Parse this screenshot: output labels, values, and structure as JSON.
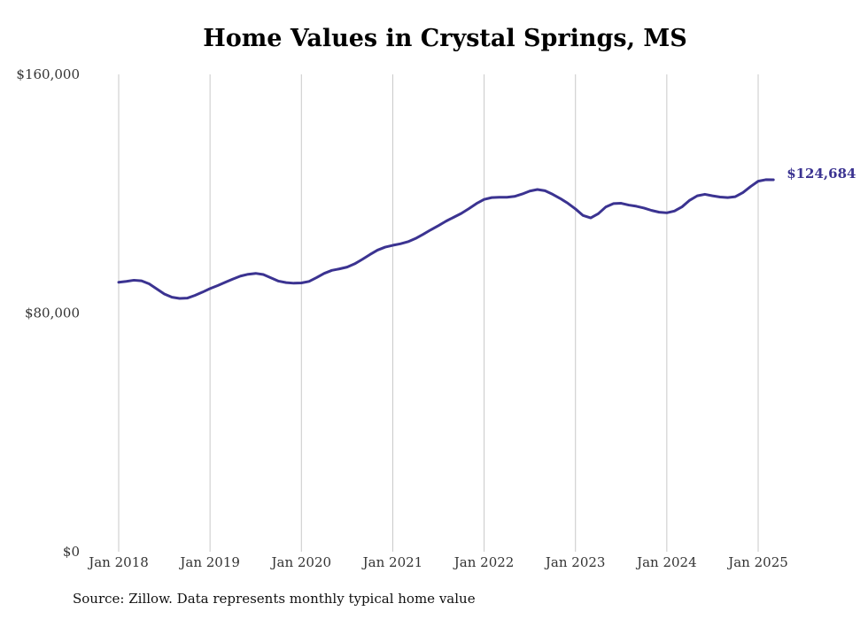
{
  "chart_data": {
    "type": "line",
    "title": "Home Values in Crystal Springs, MS",
    "source": "Source: Zillow. Data represents monthly typical home value",
    "xlabel": "",
    "ylabel": "",
    "ylim": [
      0,
      160000
    ],
    "y_ticks": [
      0,
      80000,
      160000
    ],
    "y_tick_labels": [
      "$0",
      "$80,000",
      "$160,000"
    ],
    "x_range": [
      "2018-01",
      "2025-03"
    ],
    "x_ticks": [
      "2018-01",
      "2019-01",
      "2020-01",
      "2021-01",
      "2022-01",
      "2023-01",
      "2024-01",
      "2025-01"
    ],
    "x_tick_labels": [
      "Jan 2018",
      "Jan 2019",
      "Jan 2020",
      "Jan 2021",
      "Jan 2022",
      "Jan 2023",
      "Jan 2024",
      "Jan 2025"
    ],
    "grid": "vertical",
    "end_label": "$124,684",
    "line_color": "#3b3391",
    "series": [
      {
        "x": [
          "2018-01",
          "2018-02",
          "2018-03",
          "2018-04",
          "2018-05",
          "2018-06",
          "2018-07",
          "2018-08",
          "2018-09",
          "2018-10",
          "2018-11",
          "2018-12",
          "2019-01",
          "2019-02",
          "2019-03",
          "2019-04",
          "2019-05",
          "2019-06",
          "2019-07",
          "2019-08",
          "2019-09",
          "2019-10",
          "2019-11",
          "2019-12",
          "2020-01",
          "2020-02",
          "2020-03",
          "2020-04",
          "2020-05",
          "2020-06",
          "2020-07",
          "2020-08",
          "2020-09",
          "2020-10",
          "2020-11",
          "2020-12",
          "2021-01",
          "2021-02",
          "2021-03",
          "2021-04",
          "2021-05",
          "2021-06",
          "2021-07",
          "2021-08",
          "2021-09",
          "2021-10",
          "2021-11",
          "2021-12",
          "2022-01",
          "2022-02",
          "2022-03",
          "2022-04",
          "2022-05",
          "2022-06",
          "2022-07",
          "2022-08",
          "2022-09",
          "2022-10",
          "2022-11",
          "2022-12",
          "2023-01",
          "2023-02",
          "2023-03",
          "2023-04",
          "2023-05",
          "2023-06",
          "2023-07",
          "2023-08",
          "2023-09",
          "2023-10",
          "2023-11",
          "2023-12",
          "2024-01",
          "2024-02",
          "2024-03",
          "2024-04",
          "2024-05",
          "2024-06",
          "2024-07",
          "2024-08",
          "2024-09",
          "2024-10",
          "2024-11",
          "2024-12",
          "2025-01",
          "2025-02",
          "2025-03"
        ],
        "values": [
          90300,
          90600,
          91000,
          90800,
          89800,
          88100,
          86400,
          85300,
          84900,
          85000,
          85900,
          87000,
          88200,
          89200,
          90300,
          91400,
          92400,
          93000,
          93300,
          92900,
          91800,
          90700,
          90200,
          90000,
          90100,
          90600,
          91900,
          93300,
          94300,
          94800,
          95400,
          96500,
          98000,
          99600,
          101100,
          102100,
          102700,
          103200,
          103900,
          105000,
          106400,
          107900,
          109300,
          110800,
          112100,
          113400,
          115000,
          116700,
          118100,
          118700,
          118800,
          118800,
          119100,
          119900,
          120900,
          121400,
          121000,
          119800,
          118400,
          116800,
          114900,
          112700,
          111900,
          113300,
          115600,
          116700,
          116800,
          116200,
          115800,
          115200,
          114400,
          113800,
          113600,
          114200,
          115600,
          117800,
          119300,
          119800,
          119300,
          118900,
          118700,
          119000,
          120400,
          122400,
          124200,
          124700,
          124684
        ]
      }
    ]
  }
}
